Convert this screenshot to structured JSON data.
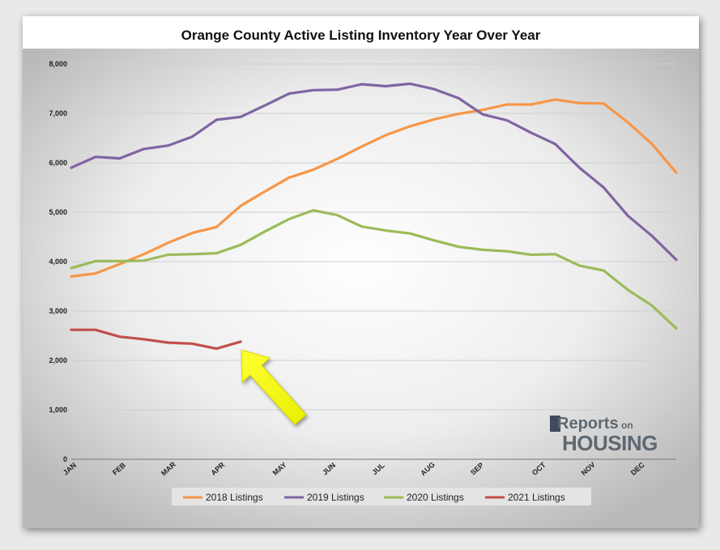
{
  "chart_data": {
    "type": "line",
    "title": "Orange County Active Listing Inventory Year Over Year",
    "y_ticks": [
      "0",
      "1,000",
      "2,000",
      "3,000",
      "4,000",
      "5,000",
      "6,000",
      "7,000",
      "8,000"
    ],
    "ylim": [
      0,
      8000
    ],
    "x_labels": [
      {
        "label": "JAN",
        "week": 0
      },
      {
        "label": "FEB",
        "week": 4
      },
      {
        "label": "MAR",
        "week": 8
      },
      {
        "label": "APR",
        "week": 12
      },
      {
        "label": "MAY",
        "week": 17
      },
      {
        "label": "JUN",
        "week": 21
      },
      {
        "label": "JUL",
        "week": 25
      },
      {
        "label": "AUG",
        "week": 29
      },
      {
        "label": "SEP",
        "week": 33
      },
      {
        "label": "OCT",
        "week": 38
      },
      {
        "label": "NOV",
        "week": 42
      },
      {
        "label": "DEC",
        "week": 46
      }
    ],
    "x_range": [
      0,
      49
    ],
    "grid": true,
    "legend_position": "bottom",
    "series": [
      {
        "name": "2018 Listings",
        "color": "#f79646",
        "values": [
          3700,
          3760,
          3950,
          4150,
          4380,
          4580,
          4700,
          5130,
          5420,
          5700,
          5860,
          6080,
          6330,
          6560,
          6740,
          6880,
          6990,
          7070,
          7180,
          7180,
          7280,
          7210,
          7200,
          6820,
          6380,
          5800
        ]
      },
      {
        "name": "2019 Listings",
        "color": "#8064a2",
        "values": [
          5900,
          6120,
          6090,
          6280,
          6350,
          6530,
          6870,
          6930,
          7160,
          7400,
          7470,
          7480,
          7590,
          7550,
          7600,
          7490,
          7310,
          6980,
          6860,
          6610,
          6380,
          5900,
          5500,
          4930,
          4520,
          4040
        ]
      },
      {
        "name": "2020 Listings",
        "color": "#9bbb59",
        "values": [
          3870,
          4010,
          4010,
          4020,
          4140,
          4150,
          4170,
          4340,
          4610,
          4860,
          5040,
          4940,
          4710,
          4630,
          4570,
          4430,
          4300,
          4240,
          4210,
          4140,
          4150,
          3920,
          3820,
          3430,
          3110,
          2650
        ]
      },
      {
        "name": "2021 Listings",
        "color": "#c0504d",
        "values": [
          2620,
          2620,
          2480,
          2430,
          2360,
          2340,
          2240,
          2380
        ]
      }
    ],
    "logo": {
      "main": "Reports",
      "small": "on",
      "housing": "HOUSING"
    }
  }
}
